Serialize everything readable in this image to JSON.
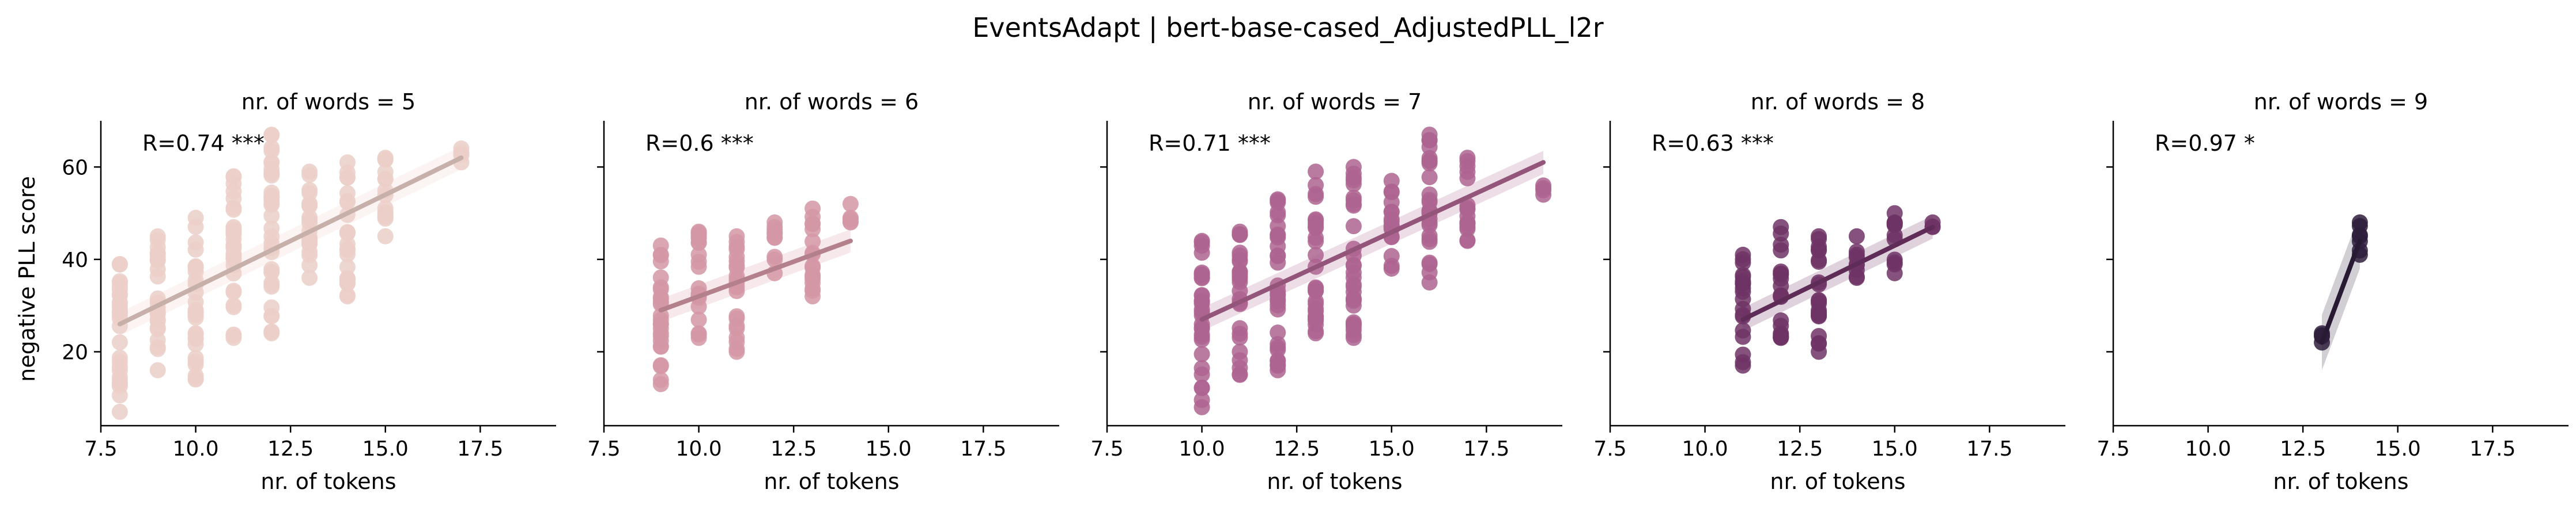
{
  "chart_data": {
    "type": "scatter",
    "title": "EventsAdapt | bert-base-cased_AdjustedPLL_l2r",
    "xlabel": "nr. of tokens",
    "ylabel": "negative PLL score",
    "xlim": [
      7.5,
      19.5
    ],
    "ylim": [
      4,
      70
    ],
    "xticks": [
      "7.5",
      "10.0",
      "12.5",
      "15.0",
      "17.5"
    ],
    "yticks": [
      "20",
      "40",
      "60"
    ],
    "grid": false,
    "panels": [
      {
        "title": "nr. of words = 5",
        "annotation": "R=0.74 ***",
        "color": "#ebcfc8",
        "fit": {
          "x0": 8,
          "y0": 26.0,
          "x1": 17,
          "y1": 62.0
        },
        "groups": [
          {
            "x": 8,
            "min": 7,
            "max": 39
          },
          {
            "x": 9,
            "min": 16,
            "max": 45
          },
          {
            "x": 10,
            "min": 14,
            "max": 49
          },
          {
            "x": 11,
            "min": 23,
            "max": 58
          },
          {
            "x": 12,
            "min": 24,
            "max": 67
          },
          {
            "x": 13,
            "min": 36,
            "max": 59
          },
          {
            "x": 14,
            "min": 32,
            "max": 61
          },
          {
            "x": 15,
            "min": 45,
            "max": 62
          },
          {
            "x": 17,
            "min": 61,
            "max": 64
          }
        ]
      },
      {
        "title": "nr. of words = 6",
        "annotation": "R=0.6 ***",
        "color": "#d497a4",
        "fit": {
          "x0": 9,
          "y0": 29.0,
          "x1": 14,
          "y1": 44.0
        },
        "groups": [
          {
            "x": 9,
            "min": 13,
            "max": 43
          },
          {
            "x": 10,
            "min": 23,
            "max": 46
          },
          {
            "x": 11,
            "min": 20,
            "max": 45
          },
          {
            "x": 12,
            "min": 37,
            "max": 48
          },
          {
            "x": 13,
            "min": 32,
            "max": 51
          },
          {
            "x": 14,
            "min": 48,
            "max": 52
          }
        ]
      },
      {
        "title": "nr. of words = 7",
        "annotation": "R=0.71 ***",
        "color": "#ae6490",
        "fit": {
          "x0": 10,
          "y0": 27.0,
          "x1": 19,
          "y1": 61.0
        },
        "groups": [
          {
            "x": 10,
            "min": 8,
            "max": 44
          },
          {
            "x": 11,
            "min": 15,
            "max": 46
          },
          {
            "x": 12,
            "min": 16,
            "max": 53
          },
          {
            "x": 13,
            "min": 24,
            "max": 59
          },
          {
            "x": 14,
            "min": 23,
            "max": 60
          },
          {
            "x": 15,
            "min": 38,
            "max": 57
          },
          {
            "x": 16,
            "min": 35,
            "max": 67
          },
          {
            "x": 17,
            "min": 44,
            "max": 62
          },
          {
            "x": 19,
            "min": 54,
            "max": 56
          }
        ]
      },
      {
        "title": "nr. of words = 8",
        "annotation": "R=0.63 ***",
        "color": "#6e3465",
        "fit": {
          "x0": 11,
          "y0": 27.0,
          "x1": 16,
          "y1": 47.0
        },
        "groups": [
          {
            "x": 11,
            "min": 17,
            "max": 41
          },
          {
            "x": 12,
            "min": 23,
            "max": 47
          },
          {
            "x": 13,
            "min": 20,
            "max": 45
          },
          {
            "x": 14,
            "min": 36,
            "max": 45
          },
          {
            "x": 15,
            "min": 37,
            "max": 50
          },
          {
            "x": 16,
            "min": 47,
            "max": 48
          }
        ]
      },
      {
        "title": "nr. of words = 9",
        "annotation": "R=0.97 *",
        "color": "#2f1f3c",
        "fit": {
          "x0": 13,
          "y0": 22.0,
          "x1": 14,
          "y1": 44.0
        },
        "groups": [
          {
            "x": 13,
            "min": 22,
            "max": 24
          },
          {
            "x": 14,
            "min": 41,
            "max": 48
          }
        ]
      }
    ]
  }
}
